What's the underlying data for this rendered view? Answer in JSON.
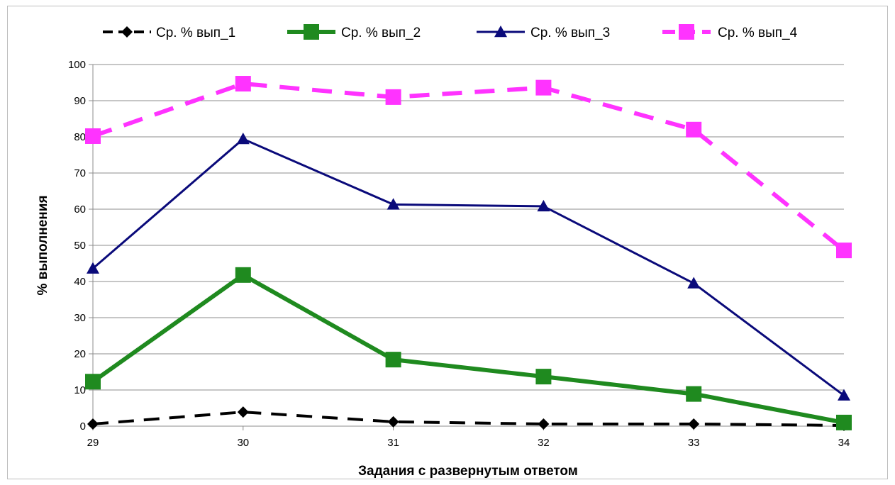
{
  "chart_data": {
    "type": "line",
    "title": "",
    "xlabel": "Задания с развернутым ответом",
    "ylabel": "% выполнения",
    "categories": [
      "29",
      "30",
      "31",
      "32",
      "33",
      "34"
    ],
    "ylim": [
      0,
      100
    ],
    "yticks": [
      0,
      10,
      20,
      30,
      40,
      50,
      60,
      70,
      80,
      90,
      100
    ],
    "grid": true,
    "legend_position": "top",
    "series": [
      {
        "name": "Ср. % вып_1",
        "values": [
          0.6,
          3.9,
          1.2,
          0.6,
          0.6,
          0.2
        ],
        "color": "#000000",
        "marker": "diamond",
        "dash": true
      },
      {
        "name": "Ср. % вып_2",
        "values": [
          12.3,
          41.8,
          18.4,
          13.7,
          8.9,
          1.0
        ],
        "color": "#1f8a1f",
        "marker": "square",
        "dash": false
      },
      {
        "name": "Ср. % вып_3",
        "values": [
          43.6,
          79.4,
          61.3,
          60.8,
          39.5,
          8.5
        ],
        "color": "#0a0a7a",
        "marker": "triangle",
        "dash": false
      },
      {
        "name": "Ср. % вып_4",
        "values": [
          80.2,
          94.7,
          91.0,
          93.6,
          82.0,
          48.6
        ],
        "color": "#ff33ff",
        "marker": "square",
        "dash": true
      }
    ]
  }
}
